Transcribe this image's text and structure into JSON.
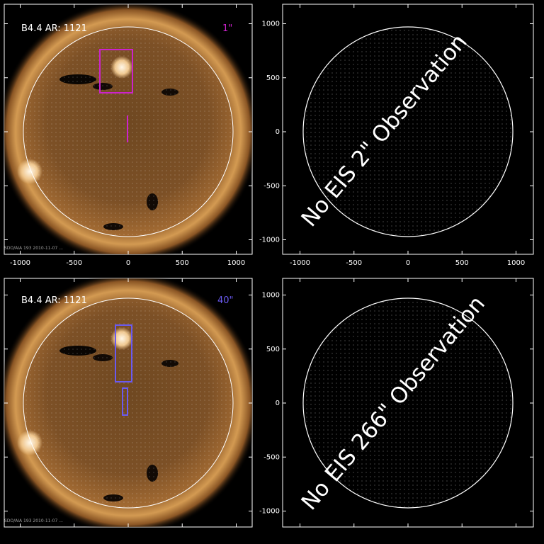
{
  "panels": [
    {
      "title": "B4.4 AR: 1121",
      "slit": "1\"",
      "slit_color": "#cc22cc",
      "footer": "SDO/AIA 193 2010-11-07 ...",
      "yticks": [
        "1000",
        "500",
        "0",
        "-500",
        "-1000"
      ],
      "xticks": []
    },
    {
      "title": "",
      "overlay": "No EIS 2\" Observation",
      "yticks": [
        "1000",
        "500",
        "0",
        "-500",
        "-1000"
      ],
      "xticks": []
    },
    {
      "title": "B4.4 AR: 1121",
      "slit": "40\"",
      "slit_color": "#6a5af0",
      "footer": "SDO/AIA 193 2010-11-07 ...",
      "yticks": [
        "1000",
        "500",
        "0",
        "-500",
        "-1000"
      ],
      "xticks": []
    },
    {
      "title": "",
      "overlay": "No EIS 266\" Observation",
      "yticks": [
        "1000",
        "500",
        "0",
        "-500",
        "-1000"
      ],
      "xticks": []
    }
  ],
  "xaxis_ticks": [
    "-1000",
    "-500",
    "0",
    "500",
    "1000"
  ],
  "colors": {
    "background": "#000000",
    "axis": "#ffffff",
    "sun_core": "#8a5a26",
    "sun_corona": "#c98a45",
    "box_1": "#cc22cc",
    "box_40": "#6a5af0"
  }
}
